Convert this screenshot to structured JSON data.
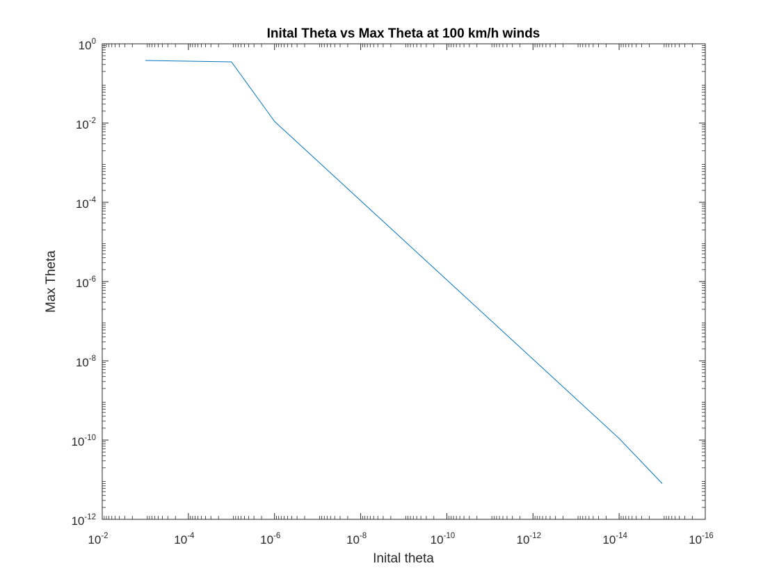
{
  "chart_data": {
    "type": "line",
    "title": "Inital Theta vs Max Theta at 100 km/h winds",
    "xlabel": "Inital theta",
    "ylabel": "Max Theta",
    "x_scale": "log",
    "y_scale": "log",
    "x_reversed": true,
    "xlim": [
      0.01,
      1e-16
    ],
    "ylim": [
      1e-12,
      1
    ],
    "grid": false,
    "x_ticks": [
      {
        "base": "10",
        "exp": "-2",
        "value": 0.01
      },
      {
        "base": "10",
        "exp": "-4",
        "value": 0.0001
      },
      {
        "base": "10",
        "exp": "-6",
        "value": 1e-06
      },
      {
        "base": "10",
        "exp": "-8",
        "value": 1e-08
      },
      {
        "base": "10",
        "exp": "-10",
        "value": 1e-10
      },
      {
        "base": "10",
        "exp": "-12",
        "value": 1e-12
      },
      {
        "base": "10",
        "exp": "-14",
        "value": 1e-14
      },
      {
        "base": "10",
        "exp": "-16",
        "value": 1e-16
      }
    ],
    "y_ticks": [
      {
        "base": "10",
        "exp": "0",
        "value": 1
      },
      {
        "base": "10",
        "exp": "-2",
        "value": 0.01
      },
      {
        "base": "10",
        "exp": "-4",
        "value": 0.0001
      },
      {
        "base": "10",
        "exp": "-6",
        "value": 1e-06
      },
      {
        "base": "10",
        "exp": "-8",
        "value": 1e-08
      },
      {
        "base": "10",
        "exp": "-10",
        "value": 1e-10
      },
      {
        "base": "10",
        "exp": "-12",
        "value": 1e-12
      }
    ],
    "series": [
      {
        "color": "#0072BD",
        "x": [
          0.001,
          1e-05,
          1e-06,
          1e-15,
          1e-14
        ],
        "y": [
          0.38,
          0.35,
          0.011,
          8e-12,
          1.1e-10
        ],
        "points": [
          {
            "x": 0.001,
            "y": 0.38
          },
          {
            "x": 1e-05,
            "y": 0.35
          },
          {
            "x": 1e-06,
            "y": 0.011
          },
          {
            "x": 1e-14,
            "y": 1.1e-10
          },
          {
            "x": 1e-15,
            "y": 8e-12
          }
        ]
      }
    ]
  }
}
